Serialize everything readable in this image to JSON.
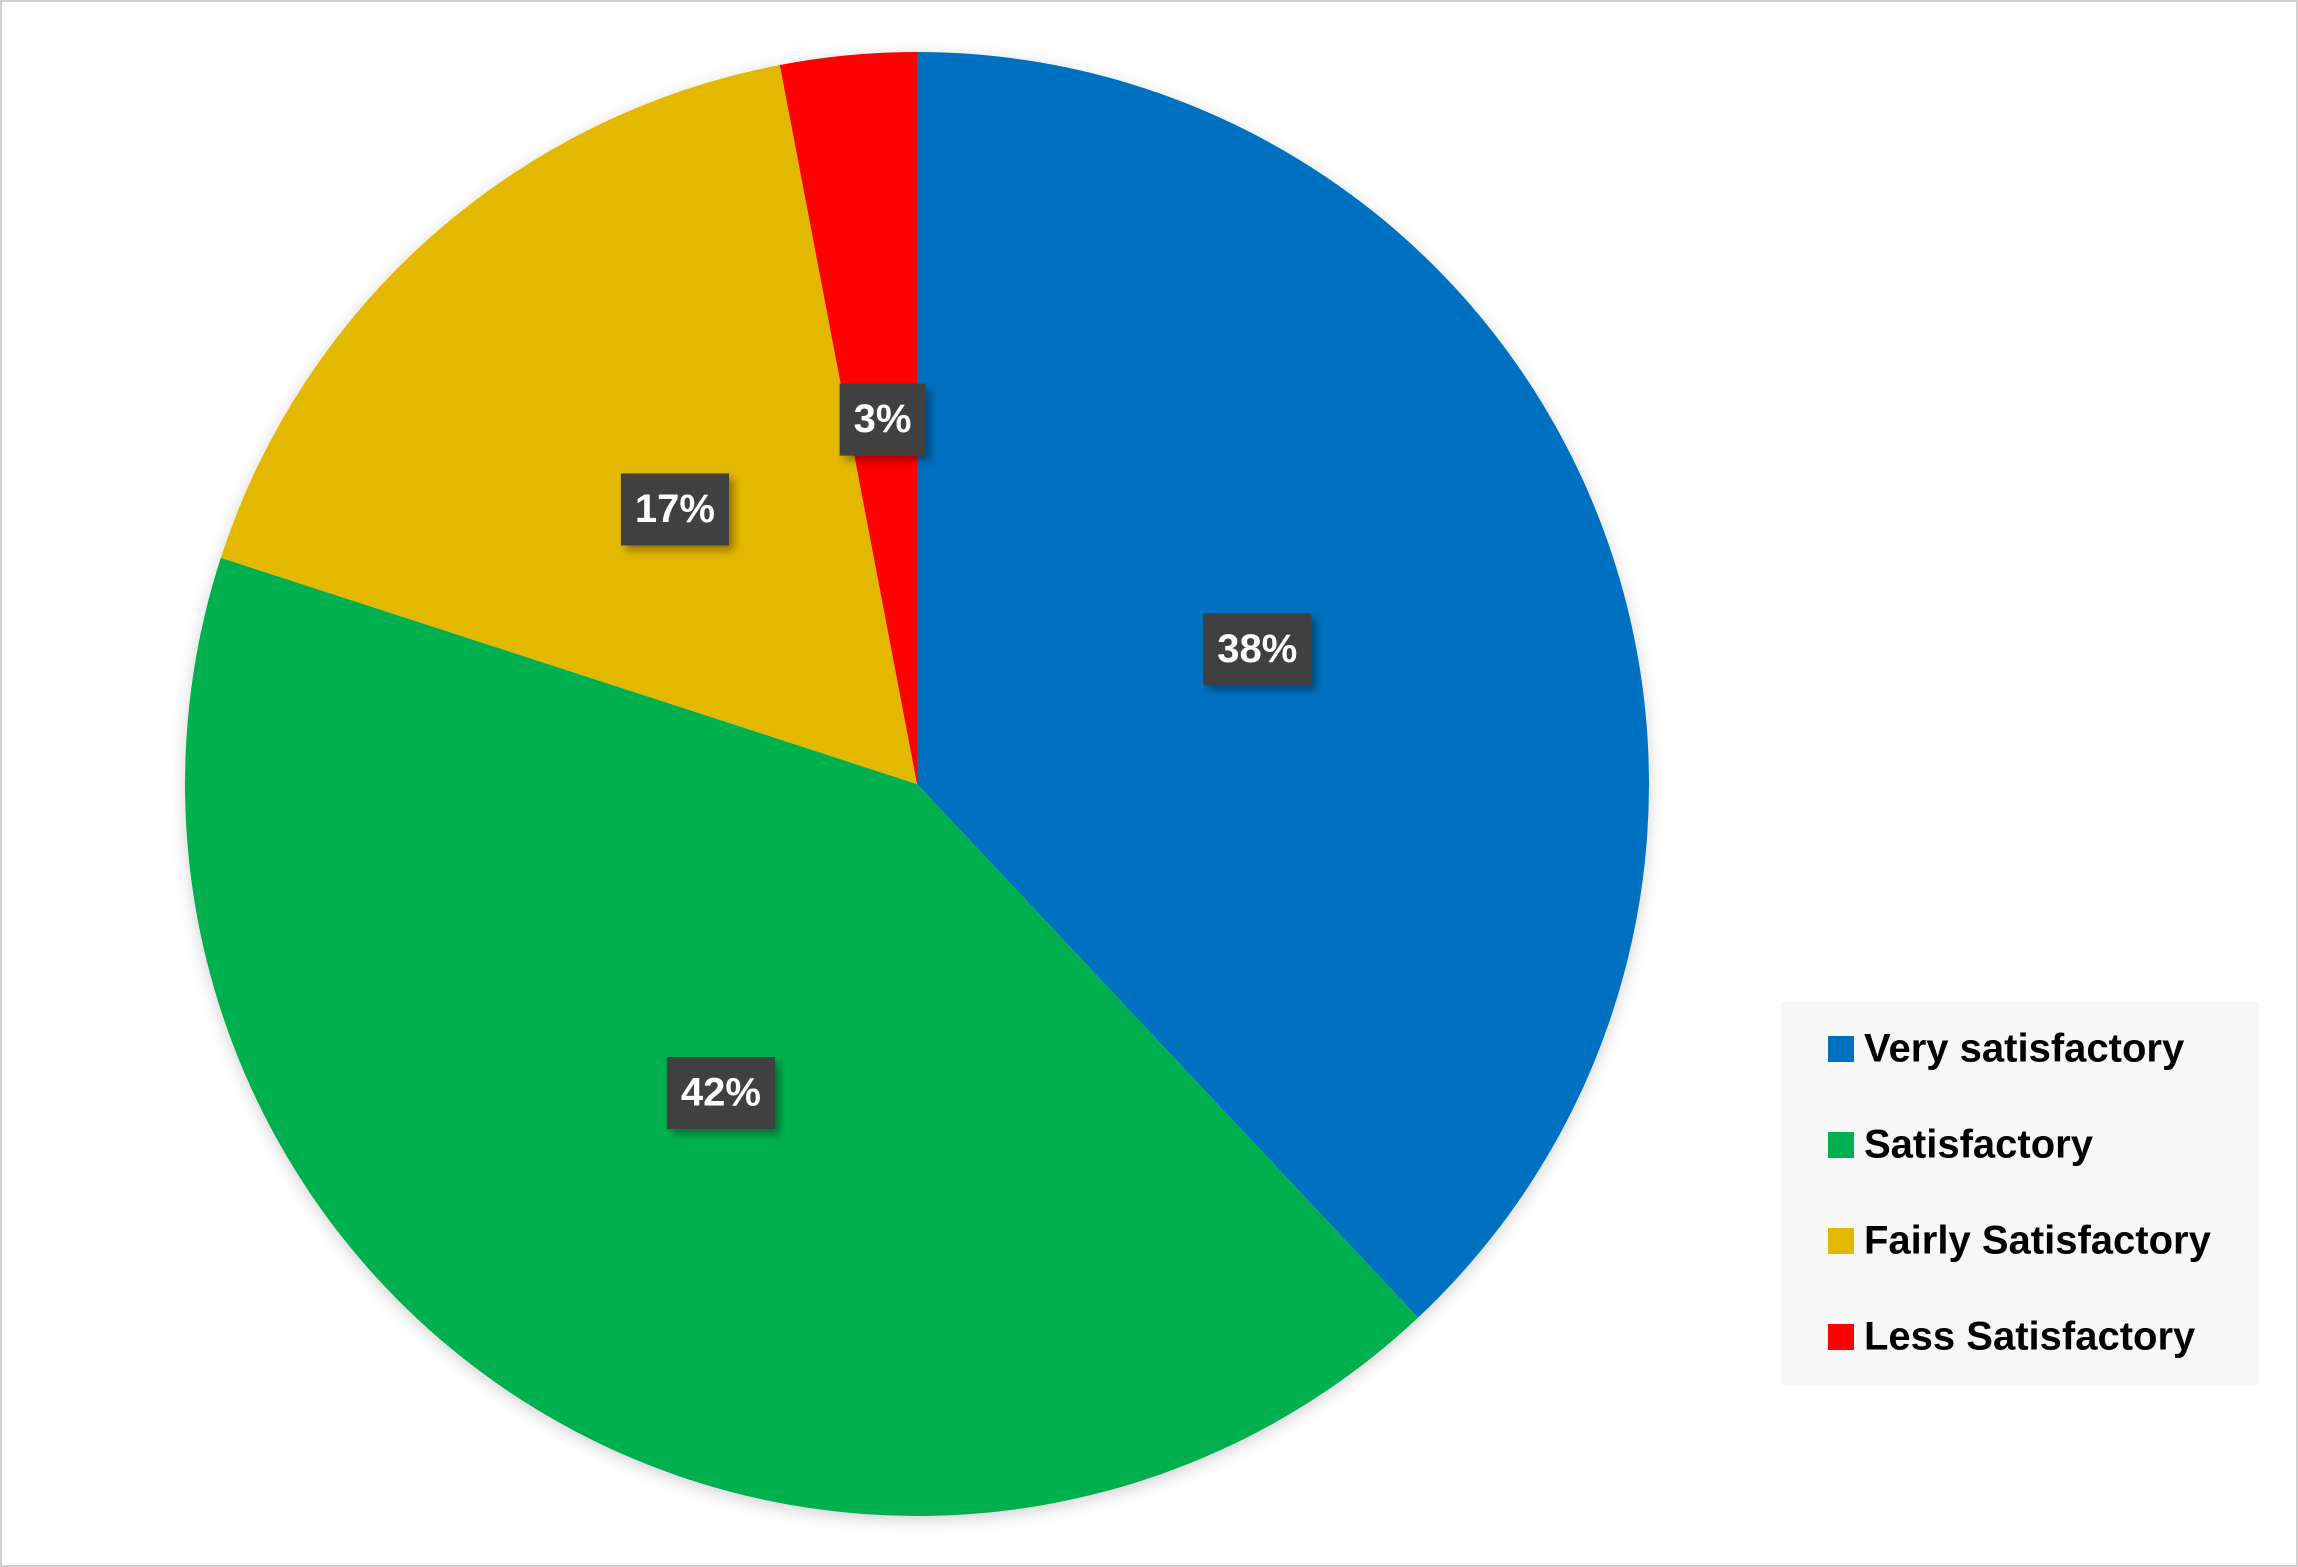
{
  "chart_data": {
    "type": "pie",
    "categories": [
      "Very satisfactory",
      "Satisfactory",
      "Fairly Satisfactory",
      "Less Satisfactory"
    ],
    "values": [
      38,
      42,
      17,
      3
    ],
    "value_labels": [
      "38%",
      "42%",
      "17%",
      "3%"
    ],
    "colors": [
      "#0070c0",
      "#00b050",
      "#e3b800",
      "#ff0000"
    ],
    "legend": "right"
  }
}
